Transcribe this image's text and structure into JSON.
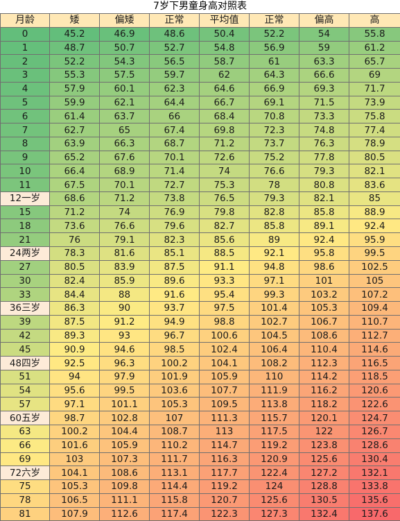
{
  "title": "7岁下男童身高对照表",
  "headers": [
    "月龄",
    "矮",
    "偏矮",
    "正常",
    "平均值",
    "正常",
    "偏高",
    "高"
  ],
  "rows": [
    {
      "month": "0",
      "values": [
        "45.2",
        "46.9",
        "48.6",
        "50.4",
        "52.2",
        "54",
        "55.8"
      ]
    },
    {
      "month": "1",
      "values": [
        "48.7",
        "50.7",
        "52.7",
        "54.8",
        "56.9",
        "59",
        "61.2"
      ]
    },
    {
      "month": "2",
      "values": [
        "52.2",
        "54.3",
        "56.5",
        "58.7",
        "61",
        "63.3",
        "65.7"
      ]
    },
    {
      "month": "3",
      "values": [
        "55.3",
        "57.5",
        "59.7",
        "62",
        "64.3",
        "66.6",
        "69"
      ]
    },
    {
      "month": "4",
      "values": [
        "57.9",
        "60.1",
        "62.3",
        "64.6",
        "66.9",
        "69.3",
        "71.7"
      ]
    },
    {
      "month": "5",
      "values": [
        "59.9",
        "62.1",
        "64.4",
        "66.7",
        "69.1",
        "71.5",
        "73.9"
      ]
    },
    {
      "month": "6",
      "values": [
        "61.4",
        "63.7",
        "66",
        "68.4",
        "70.8",
        "73.3",
        "75.8"
      ]
    },
    {
      "month": "7",
      "values": [
        "62.7",
        "65",
        "67.4",
        "69.8",
        "72.3",
        "74.8",
        "77.4"
      ]
    },
    {
      "month": "8",
      "values": [
        "63.9",
        "66.3",
        "68.7",
        "71.2",
        "73.7",
        "76.3",
        "78.9"
      ]
    },
    {
      "month": "9",
      "values": [
        "65.2",
        "67.6",
        "70.1",
        "72.6",
        "75.2",
        "77.8",
        "80.5"
      ]
    },
    {
      "month": "10",
      "values": [
        "66.4",
        "68.9",
        "71.4",
        "74",
        "76.6",
        "79.3",
        "82.1"
      ]
    },
    {
      "month": "11",
      "values": [
        "67.5",
        "70.1",
        "72.7",
        "75.3",
        "78",
        "80.8",
        "83.6"
      ]
    },
    {
      "month": "12一岁",
      "values": [
        "68.6",
        "71.2",
        "73.8",
        "76.5",
        "79.3",
        "82.1",
        "85"
      ]
    },
    {
      "month": "15",
      "values": [
        "71.2",
        "74",
        "76.9",
        "79.8",
        "82.8",
        "85.8",
        "88.9"
      ]
    },
    {
      "month": "18",
      "values": [
        "73.6",
        "76.6",
        "79.6",
        "82.7",
        "85.8",
        "89.1",
        "92.4"
      ]
    },
    {
      "month": "21",
      "values": [
        "76",
        "79.1",
        "82.3",
        "85.6",
        "89",
        "92.4",
        "95.9"
      ]
    },
    {
      "month": "24两岁",
      "values": [
        "78.3",
        "81.6",
        "85.1",
        "88.5",
        "92.1",
        "95.8",
        "99.5"
      ]
    },
    {
      "month": "27",
      "values": [
        "80.5",
        "83.9",
        "87.5",
        "91.1",
        "94.8",
        "98.6",
        "102.5"
      ]
    },
    {
      "month": "30",
      "values": [
        "82.4",
        "85.9",
        "89.6",
        "93.3",
        "97.1",
        "101",
        "105"
      ]
    },
    {
      "month": "33",
      "values": [
        "84.4",
        "88",
        "91.6",
        "95.4",
        "99.3",
        "103.2",
        "107.2"
      ]
    },
    {
      "month": "36三岁",
      "values": [
        "86.3",
        "90",
        "93.7",
        "97.5",
        "101.4",
        "105.3",
        "109.4"
      ]
    },
    {
      "month": "39",
      "values": [
        "87.5",
        "91.2",
        "94.9",
        "98.8",
        "102.7",
        "106.7",
        "110.7"
      ]
    },
    {
      "month": "42",
      "values": [
        "89.3",
        "93",
        "96.7",
        "100.6",
        "104.5",
        "108.6",
        "112.7"
      ]
    },
    {
      "month": "45",
      "values": [
        "90.9",
        "94.6",
        "98.5",
        "102.4",
        "106.4",
        "110.4",
        "114.6"
      ]
    },
    {
      "month": "48四岁",
      "values": [
        "92.5",
        "96.3",
        "100.2",
        "104.1",
        "108.2",
        "112.3",
        "116.5"
      ]
    },
    {
      "month": "51",
      "values": [
        "94",
        "97.9",
        "101.9",
        "105.9",
        "110",
        "114.2",
        "118.5"
      ]
    },
    {
      "month": "54",
      "values": [
        "95.6",
        "99.5",
        "103.6",
        "107.7",
        "111.9",
        "116.2",
        "120.6"
      ]
    },
    {
      "month": "57",
      "values": [
        "97.1",
        "101.1",
        "105.3",
        "109.5",
        "113.8",
        "118.2",
        "122.6"
      ]
    },
    {
      "month": "60五岁",
      "values": [
        "98.7",
        "102.8",
        "107",
        "111.3",
        "115.7",
        "120.1",
        "124.7"
      ]
    },
    {
      "month": "63",
      "values": [
        "100.2",
        "104.4",
        "108.7",
        "113",
        "117.5",
        "122",
        "126.7"
      ]
    },
    {
      "month": "66",
      "values": [
        "101.6",
        "105.9",
        "110.2",
        "114.7",
        "119.2",
        "123.8",
        "128.6"
      ]
    },
    {
      "month": "69",
      "values": [
        "103",
        "107.3",
        "111.7",
        "116.3",
        "120.9",
        "125.6",
        "130.4"
      ]
    },
    {
      "month": "72六岁",
      "values": [
        "104.1",
        "108.6",
        "113.1",
        "117.7",
        "122.4",
        "127.2",
        "132.1"
      ]
    },
    {
      "month": "75",
      "values": [
        "105.3",
        "109.8",
        "114.4",
        "119.2",
        "124",
        "128.8",
        "133.8"
      ]
    },
    {
      "month": "78",
      "values": [
        "106.5",
        "111.1",
        "115.8",
        "120.7",
        "125.6",
        "130.5",
        "135.6"
      ]
    },
    {
      "month": "81",
      "values": [
        "107.9",
        "112.6",
        "117.4",
        "122.3",
        "127.3",
        "132.4",
        "137.6"
      ]
    }
  ],
  "colors": {
    "header_bg": "#ffe8b5",
    "year_row_bg": "#fdebd8",
    "scale_low": "#63be7b",
    "scale_mid": "#ffeb84",
    "scale_high": "#f8696b",
    "border": "#6f6f6f"
  }
}
